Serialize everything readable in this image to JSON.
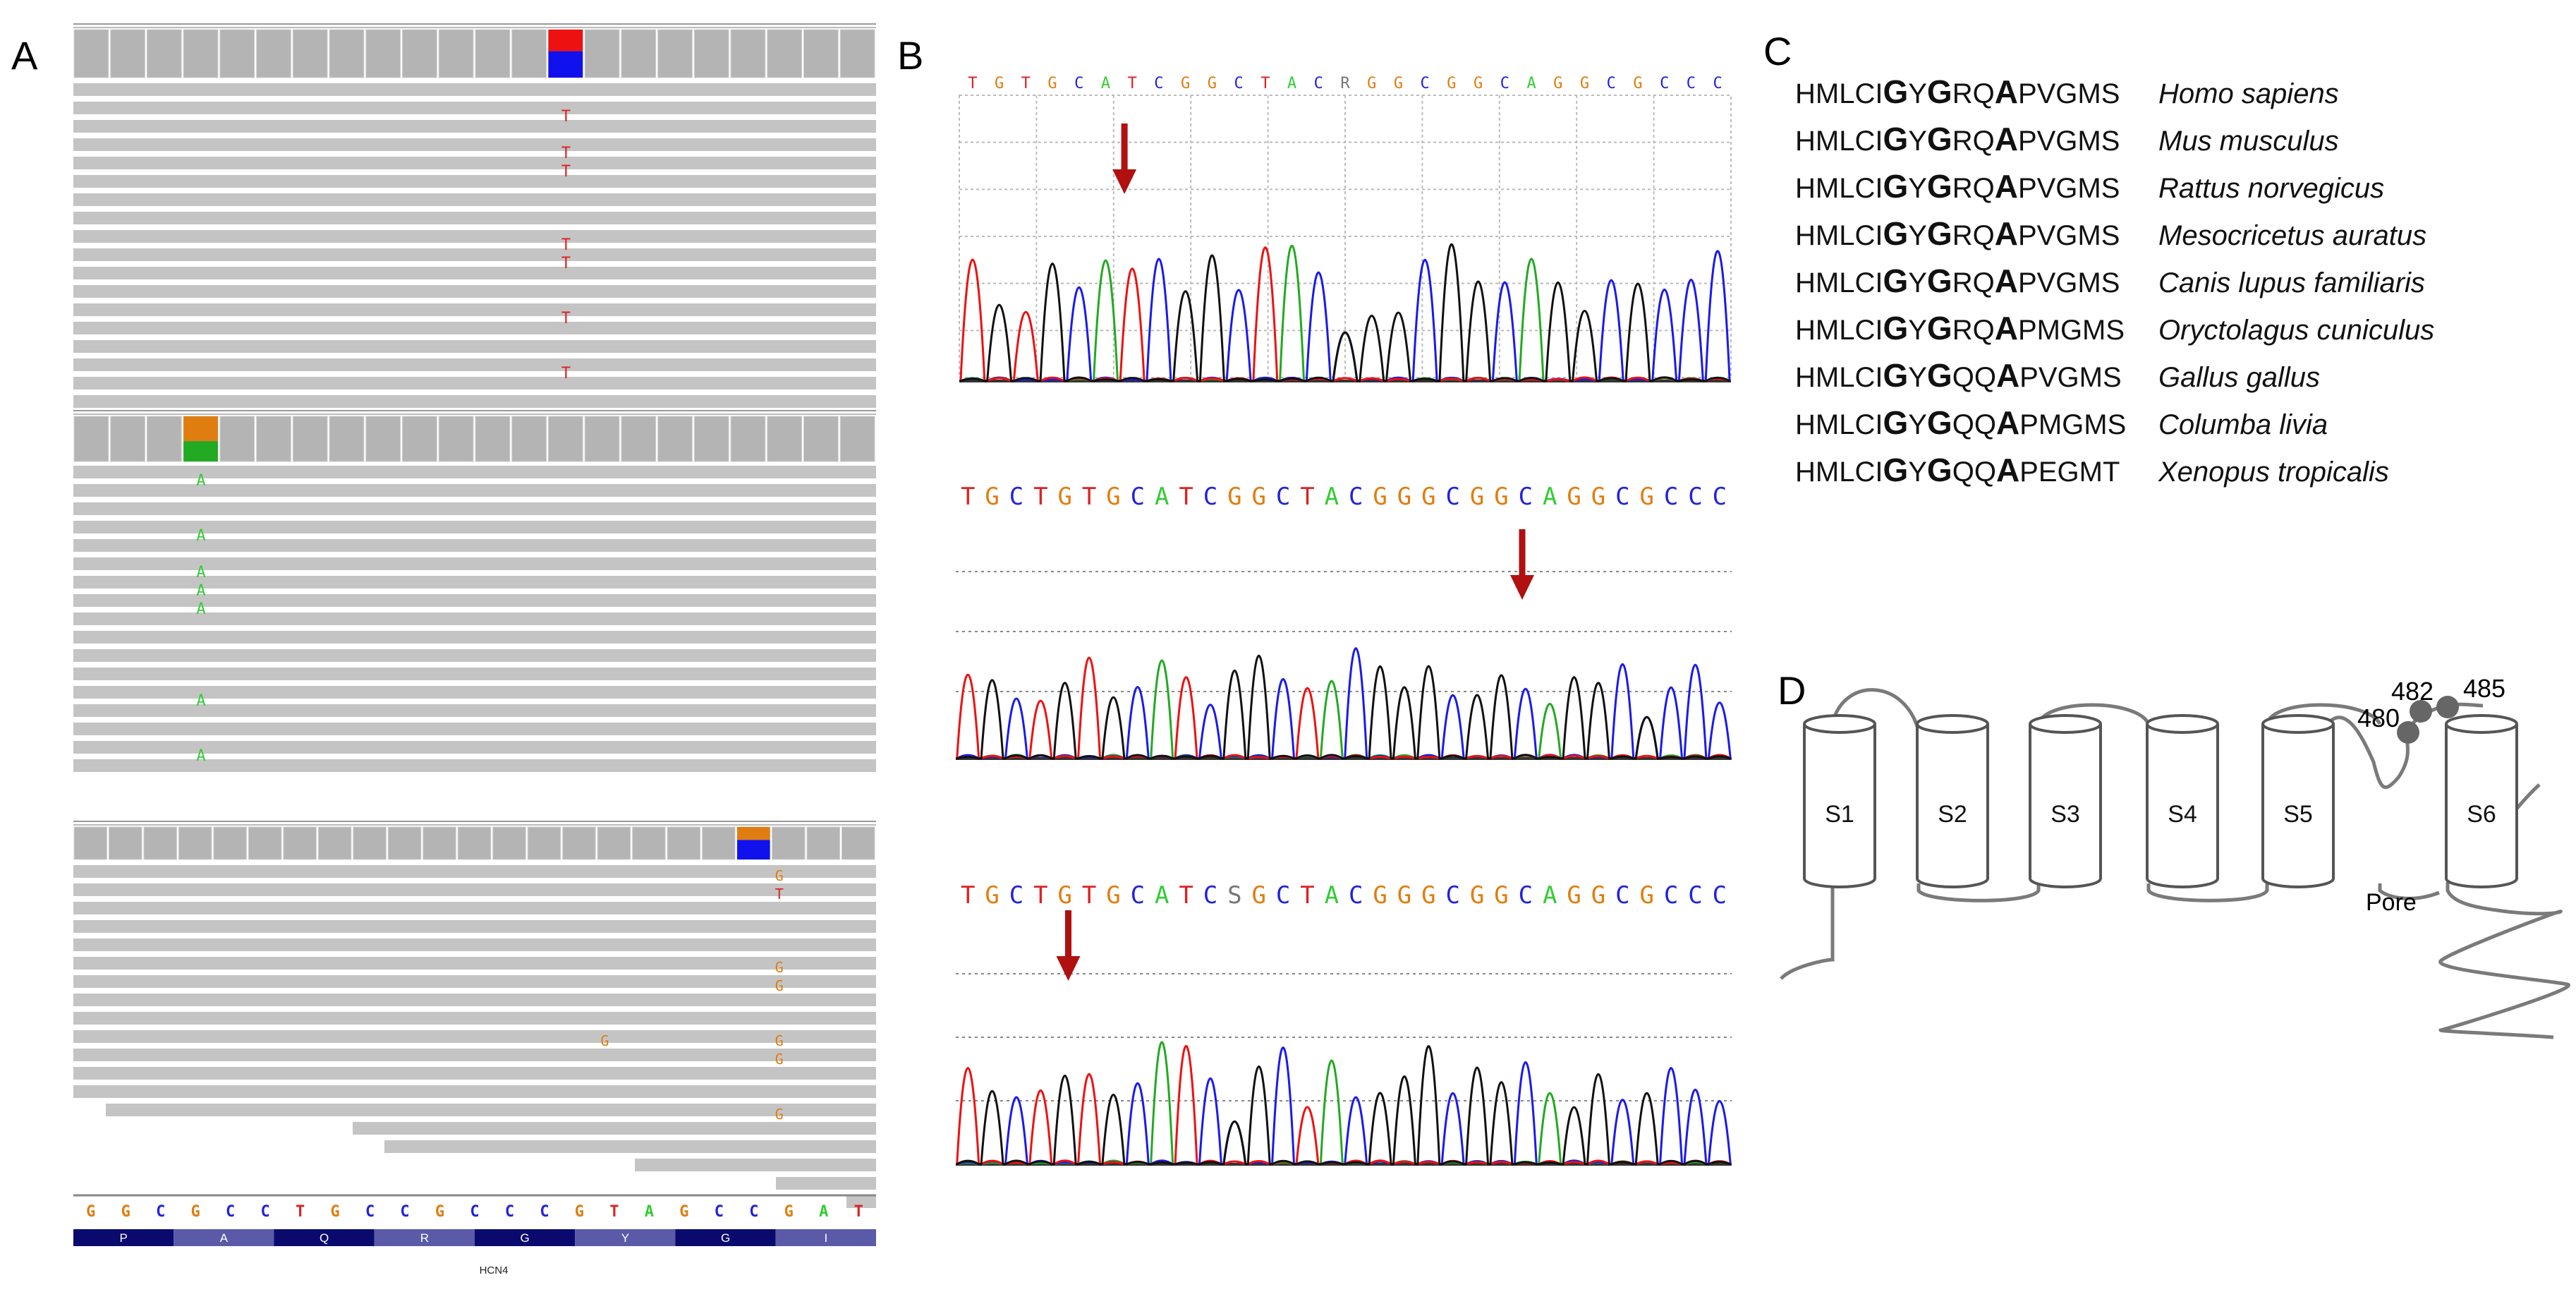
{
  "panel_labels": {
    "a": "A",
    "b": "B",
    "c": "C",
    "d": "D"
  },
  "colors": {
    "A": "#33cc33",
    "C": "#2222dd",
    "G": "#e07d10",
    "T": "#dd2222",
    "read": "#c4c4c4",
    "coverage": "#b4b4b4",
    "amino_dark": "#0a0a6e",
    "amino_light": "#5a5aa8",
    "arrow": "#b01010"
  },
  "igv": {
    "reference": [
      "G",
      "G",
      "C",
      "G",
      "C",
      "C",
      "T",
      "G",
      "C",
      "C",
      "G",
      "C",
      "C",
      "C",
      "G",
      "T",
      "A",
      "G",
      "C",
      "C",
      "G",
      "A",
      "T"
    ],
    "amino_acids": [
      "P",
      "A",
      "Q",
      "R",
      "G",
      "Y",
      "G",
      "I"
    ],
    "gene": "HCN4",
    "track1_variant": "T",
    "track1_rows": [
      1,
      3,
      4,
      8,
      9,
      12,
      15
    ],
    "track2_variant": "A",
    "track2_rows": [
      0,
      3,
      5,
      6,
      7,
      12,
      15
    ],
    "track3_rows": [
      {
        "row": 0,
        "base": "G",
        "col": 20
      },
      {
        "row": 1,
        "base": "T",
        "col": 20
      },
      {
        "row": 5,
        "base": "G",
        "col": 20
      },
      {
        "row": 6,
        "base": "G",
        "col": 20
      },
      {
        "row": 9,
        "base": "G",
        "col": 15
      },
      {
        "row": 9,
        "base": "G",
        "col": 20
      },
      {
        "row": 10,
        "base": "G",
        "col": 20
      },
      {
        "row": 13,
        "base": "G",
        "col": 20
      }
    ]
  },
  "chromatograms": [
    {
      "seq": "TGTGCATCGGCTACRGGCGGCAGGCGCCC",
      "style": "small"
    },
    {
      "seq": "TGCTGTGCATCGGCTACGGGCGGCAGGCGCCC",
      "style": "large"
    },
    {
      "seq": "TGCTGTGCATCSGCTACGGGCGGCAGGCGCCC",
      "style": "large"
    }
  ],
  "alignment": [
    {
      "p1": "HMLCI",
      "b1": "G",
      "p2": "Y",
      "b2": "G",
      "p3": "RQ",
      "b3": "A",
      "p4": "PVGMS",
      "species": "Homo sapiens"
    },
    {
      "p1": "HMLCI",
      "b1": "G",
      "p2": "Y",
      "b2": "G",
      "p3": "RQ",
      "b3": "A",
      "p4": "PVGMS",
      "species": "Mus musculus"
    },
    {
      "p1": "HMLCI",
      "b1": "G",
      "p2": "Y",
      "b2": "G",
      "p3": "RQ",
      "b3": "A",
      "p4": "PVGMS",
      "species": "Rattus norvegicus"
    },
    {
      "p1": "HMLCI",
      "b1": "G",
      "p2": "Y",
      "b2": "G",
      "p3": "RQ",
      "b3": "A",
      "p4": "PVGMS",
      "species": "Mesocricetus auratus"
    },
    {
      "p1": "HMLCI",
      "b1": "G",
      "p2": "Y",
      "b2": "G",
      "p3": "RQ",
      "b3": "A",
      "p4": "PVGMS",
      "species": "Canis lupus familiaris"
    },
    {
      "p1": "HMLCI",
      "b1": "G",
      "p2": "Y",
      "b2": "G",
      "p3": "RQ",
      "b3": "A",
      "p4": "PMGMS",
      "species": "Oryctolagus cuniculus"
    },
    {
      "p1": "HMLCI",
      "b1": "G",
      "p2": "Y",
      "b2": "G",
      "p3": "QQ",
      "b3": "A",
      "p4": "PVGMS",
      "species": "Gallus gallus"
    },
    {
      "p1": "HMLCI",
      "b1": "G",
      "p2": "Y",
      "b2": "G",
      "p3": "QQ",
      "b3": "A",
      "p4": "PMGMS",
      "species": "Columba livia"
    },
    {
      "p1": "HMLCI",
      "b1": "G",
      "p2": "Y",
      "b2": "G",
      "p3": "QQ",
      "b3": "A",
      "p4": "PEGMT",
      "species": "Xenopus tropicalis"
    }
  ],
  "topology": {
    "segments": [
      "S1",
      "S2",
      "S3",
      "S4",
      "S5",
      "S6"
    ],
    "pore_label": "Pore",
    "residues": [
      "480",
      "482",
      "485"
    ]
  }
}
